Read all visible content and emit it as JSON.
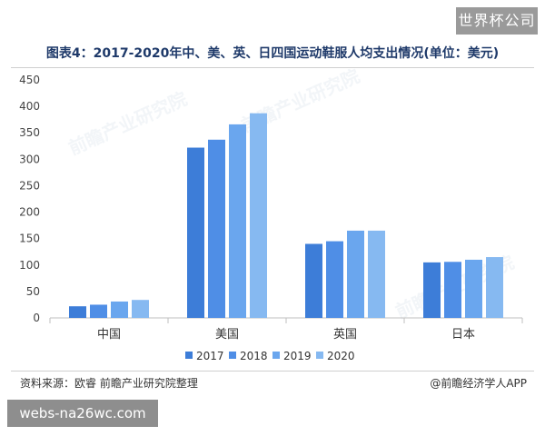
{
  "badges": {
    "top": "世界杯公司",
    "bottom": "webs-na26wc.com"
  },
  "title": "图表4：2017-2020年中、美、英、日四国运动鞋服人均支出情况(单位：美元)",
  "source": "资料来源：欧睿 前瞻产业研究院整理",
  "credit": "@前瞻经济学人APP",
  "watermark": "前瞻产业研究院",
  "colors": {
    "2017": "#3d7dd8",
    "2018": "#4f8ee6",
    "2019": "#6aa6ee",
    "2020": "#86b9f1"
  },
  "chart_data": {
    "type": "bar",
    "categories": [
      "中国",
      "美国",
      "英国",
      "日本"
    ],
    "series": [
      {
        "name": "2017",
        "values": [
          22,
          322,
          140,
          105
        ]
      },
      {
        "name": "2018",
        "values": [
          25,
          337,
          145,
          106
        ]
      },
      {
        "name": "2019",
        "values": [
          31,
          366,
          165,
          110
        ]
      },
      {
        "name": "2020",
        "values": [
          34,
          387,
          165,
          115
        ]
      }
    ],
    "ylim": [
      0,
      450
    ],
    "yticks": [
      0,
      50,
      100,
      150,
      200,
      250,
      300,
      350,
      400,
      450
    ],
    "grid": false,
    "legend": "bottom"
  }
}
